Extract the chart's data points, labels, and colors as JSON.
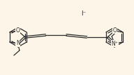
{
  "bg_color": "#fdf6e8",
  "line_color": "#2a2a2a",
  "line_width": 0.9,
  "figsize": [
    1.92,
    1.07
  ],
  "dpi": 100,
  "iodide_label": "I⁻",
  "nplus_label": "N⁺",
  "n_label": "N",
  "o_label": "O"
}
